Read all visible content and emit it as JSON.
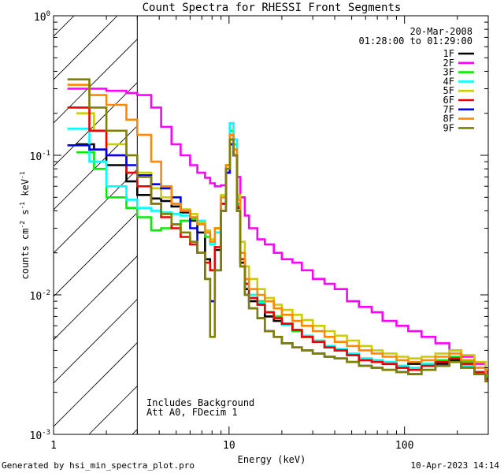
{
  "chart_data": {
    "type": "line",
    "title": "Count Spectra for RHESSI Front Segments",
    "xlabel": "Energy (keV)",
    "ylabel": "counts cm",
    "ylabel_sup1": "-2",
    "ylabel_mid": " s",
    "ylabel_sup2": "-1",
    "ylabel_mid2": " keV",
    "ylabel_sup3": "-1",
    "x_scale": "log",
    "y_scale": "log",
    "xlim": [
      1,
      300
    ],
    "ylim": [
      0.001,
      1
    ],
    "x_tick_labels": [
      {
        "value": 1,
        "label": "1"
      },
      {
        "value": 10,
        "label": "10"
      },
      {
        "value": 100,
        "label": "100"
      }
    ],
    "y_tick_labels": [
      {
        "value": 1,
        "base": "10",
        "exp": "0"
      },
      {
        "value": 0.1,
        "base": "10",
        "exp": "-1"
      },
      {
        "value": 0.01,
        "base": "10",
        "exp": "-2"
      },
      {
        "value": 0.001,
        "base": "10",
        "exp": "-3"
      }
    ],
    "date": "20-Mar-2008",
    "time_range": "01:28:00 to 01:29:00",
    "excluded_region_max_kev": 3,
    "annotations": [
      "Includes Background",
      "Att A0, FDecim 1"
    ],
    "series": [
      {
        "name": "1F",
        "color": "#000000",
        "x": [
          1.35,
          1.7,
          2.0,
          2.6,
          3.0,
          3.6,
          4.1,
          4.7,
          5.3,
          6.0,
          6.6,
          7.3,
          7.8,
          8.3,
          9.0,
          9.6,
          10.1,
          10.6,
          11.1,
          11.6,
          12.3,
          13.0,
          14.5,
          16,
          18,
          20,
          23,
          26,
          30,
          35,
          40,
          47,
          55,
          65,
          75,
          90,
          105,
          125,
          150,
          180,
          210,
          250,
          290
        ],
        "values": [
          0.12,
          0.11,
          0.085,
          0.065,
          0.052,
          0.049,
          0.047,
          0.043,
          0.039,
          0.034,
          0.028,
          0.018,
          0.015,
          0.021,
          0.045,
          0.075,
          0.12,
          0.1,
          0.042,
          0.017,
          0.011,
          0.009,
          0.0085,
          0.007,
          0.0065,
          0.0062,
          0.0056,
          0.005,
          0.0046,
          0.0042,
          0.004,
          0.0037,
          0.0034,
          0.0033,
          0.0032,
          0.003,
          0.0032,
          0.0031,
          0.0032,
          0.0034,
          0.0031,
          0.0027,
          0.0024
        ]
      },
      {
        "name": "2F",
        "color": "#ff00ff",
        "x": [
          1.2,
          1.6,
          2.0,
          2.6,
          3.0,
          3.6,
          4.1,
          4.7,
          5.3,
          6.0,
          6.6,
          7.3,
          7.8,
          8.3,
          9.0,
          9.6,
          10.1,
          10.6,
          11.1,
          11.6,
          12.3,
          13.0,
          14.5,
          16,
          18,
          20,
          23,
          26,
          30,
          35,
          40,
          47,
          55,
          65,
          75,
          90,
          105,
          125,
          150,
          180,
          210,
          250,
          290
        ],
        "values": [
          0.3,
          0.3,
          0.29,
          0.28,
          0.27,
          0.22,
          0.16,
          0.12,
          0.1,
          0.085,
          0.075,
          0.069,
          0.063,
          0.06,
          0.061,
          0.075,
          0.12,
          0.1,
          0.07,
          0.05,
          0.037,
          0.03,
          0.025,
          0.023,
          0.02,
          0.018,
          0.017,
          0.015,
          0.013,
          0.012,
          0.011,
          0.009,
          0.0082,
          0.0075,
          0.0065,
          0.006,
          0.0055,
          0.005,
          0.0045,
          0.004,
          0.0036,
          0.0032,
          0.0028
        ]
      },
      {
        "name": "3F",
        "color": "#00ee00",
        "x": [
          1.35,
          1.7,
          2.0,
          2.6,
          3.0,
          3.6,
          4.1,
          4.7,
          5.3,
          6.0,
          6.6,
          7.3,
          7.8,
          8.3,
          9.0,
          9.6,
          10.1,
          10.6,
          11.1,
          11.6,
          12.3,
          13.0,
          14.5,
          16,
          18,
          20,
          23,
          26,
          30,
          35,
          40,
          47,
          55,
          65,
          75,
          90,
          105,
          125,
          150,
          180,
          210,
          250,
          290
        ],
        "values": [
          0.105,
          0.08,
          0.05,
          0.042,
          0.036,
          0.029,
          0.03,
          0.032,
          0.034,
          0.035,
          0.033,
          0.026,
          0.023,
          0.03,
          0.05,
          0.085,
          0.15,
          0.12,
          0.045,
          0.018,
          0.012,
          0.01,
          0.009,
          0.0075,
          0.007,
          0.0062,
          0.0055,
          0.005,
          0.0047,
          0.0043,
          0.004,
          0.0037,
          0.0035,
          0.0034,
          0.0033,
          0.0031,
          0.003,
          0.0032,
          0.0034,
          0.0036,
          0.0033,
          0.003,
          0.0026
        ]
      },
      {
        "name": "4F",
        "color": "#00ffff",
        "x": [
          1.2,
          1.6,
          2.0,
          2.6,
          3.0,
          3.6,
          4.1,
          4.7,
          5.3,
          6.0,
          6.6,
          7.3,
          7.8,
          8.3,
          9.0,
          9.6,
          10.1,
          10.6,
          11.1,
          11.6,
          12.3,
          13.0,
          14.5,
          16,
          18,
          20,
          23,
          26,
          30,
          35,
          40,
          47,
          55,
          65,
          75,
          90,
          105,
          125,
          150,
          180,
          210,
          250,
          290
        ],
        "values": [
          0.155,
          0.09,
          0.06,
          0.048,
          0.042,
          0.04,
          0.039,
          0.038,
          0.037,
          0.036,
          0.034,
          0.028,
          0.023,
          0.028,
          0.05,
          0.085,
          0.17,
          0.13,
          0.05,
          0.02,
          0.013,
          0.01,
          0.0088,
          0.0075,
          0.0068,
          0.0061,
          0.0056,
          0.0051,
          0.0047,
          0.0043,
          0.0041,
          0.0038,
          0.0035,
          0.0034,
          0.0033,
          0.0031,
          0.003,
          0.0032,
          0.0031,
          0.0033,
          0.0031,
          0.0028,
          0.0025
        ]
      },
      {
        "name": "5F",
        "color": "#cccc00",
        "x": [
          1.35,
          1.7,
          2.0,
          2.6,
          3.0,
          3.6,
          4.1,
          4.7,
          5.3,
          6.0,
          6.6,
          7.3,
          7.8,
          8.3,
          9.0,
          9.6,
          10.1,
          10.6,
          11.1,
          11.6,
          12.3,
          13.0,
          14.5,
          16,
          18,
          20,
          23,
          26,
          30,
          35,
          40,
          47,
          55,
          65,
          75,
          90,
          105,
          125,
          150,
          180,
          210,
          250,
          290
        ],
        "values": [
          0.2,
          0.15,
          0.12,
          0.1,
          0.075,
          0.058,
          0.05,
          0.045,
          0.041,
          0.038,
          0.033,
          0.029,
          0.025,
          0.03,
          0.052,
          0.085,
          0.14,
          0.11,
          0.052,
          0.024,
          0.016,
          0.013,
          0.011,
          0.0095,
          0.0085,
          0.0078,
          0.0072,
          0.0066,
          0.006,
          0.0055,
          0.0051,
          0.0047,
          0.0043,
          0.004,
          0.0038,
          0.0036,
          0.0035,
          0.0036,
          0.0038,
          0.004,
          0.0037,
          0.0033,
          0.0029
        ]
      },
      {
        "name": "6F",
        "color": "#ee0000",
        "x": [
          1.2,
          1.6,
          2.0,
          2.6,
          3.0,
          3.6,
          4.1,
          4.7,
          5.3,
          6.0,
          6.6,
          7.3,
          7.8,
          8.3,
          9.0,
          9.6,
          10.1,
          10.6,
          11.1,
          11.6,
          12.3,
          13.0,
          14.5,
          16,
          18,
          20,
          23,
          26,
          30,
          35,
          40,
          47,
          55,
          65,
          75,
          90,
          105,
          125,
          150,
          180,
          210,
          250,
          290
        ],
        "values": [
          0.22,
          0.15,
          0.1,
          0.075,
          0.06,
          0.045,
          0.036,
          0.03,
          0.026,
          0.023,
          0.02,
          0.017,
          0.015,
          0.022,
          0.045,
          0.08,
          0.13,
          0.1,
          0.043,
          0.018,
          0.012,
          0.0095,
          0.0085,
          0.0075,
          0.0068,
          0.0062,
          0.0056,
          0.005,
          0.0046,
          0.0042,
          0.004,
          0.0037,
          0.0034,
          0.0033,
          0.0032,
          0.003,
          0.0029,
          0.0031,
          0.0033,
          0.0035,
          0.0032,
          0.0028,
          0.0025
        ]
      },
      {
        "name": "7F",
        "color": "#0000ee",
        "x": [
          1.2,
          1.6,
          2.0,
          2.6,
          3.0,
          3.6,
          4.1,
          4.7,
          5.3,
          6.0,
          6.6,
          7.3,
          7.8,
          8.3,
          9.0,
          9.6,
          10.1,
          10.6,
          11.1,
          11.6,
          12.3,
          13.0,
          14.5,
          16,
          18,
          20,
          23,
          26,
          30,
          35,
          40,
          47,
          55,
          65,
          75,
          90,
          105,
          125,
          150,
          180,
          210,
          250,
          290
        ],
        "values": [
          0.118,
          0.11,
          0.1,
          0.085,
          0.072,
          0.062,
          0.058,
          0.05,
          0.04,
          0.03,
          0.02,
          0.013,
          0.009,
          0.015,
          0.04,
          0.075,
          0.12,
          0.1,
          0.04,
          0.016,
          0.01,
          0.008,
          0.0068,
          0.0055,
          0.005,
          0.0045,
          0.0042,
          0.004,
          0.0038,
          0.0036,
          0.0035,
          0.0033,
          0.0031,
          0.003,
          0.0029,
          0.0028,
          0.0027,
          0.0029,
          0.0031,
          0.0033,
          0.003,
          0.0027,
          0.0024
        ]
      },
      {
        "name": "8F",
        "color": "#ff8800",
        "x": [
          1.2,
          1.6,
          2.0,
          2.6,
          3.0,
          3.6,
          4.1,
          4.7,
          5.3,
          6.0,
          6.6,
          7.3,
          7.8,
          8.3,
          9.0,
          9.6,
          10.1,
          10.6,
          11.1,
          11.6,
          12.3,
          13.0,
          14.5,
          16,
          18,
          20,
          23,
          26,
          30,
          35,
          40,
          47,
          55,
          65,
          75,
          90,
          105,
          125,
          150,
          180,
          210,
          250,
          290
        ],
        "values": [
          0.32,
          0.27,
          0.23,
          0.18,
          0.14,
          0.09,
          0.06,
          0.045,
          0.04,
          0.036,
          0.032,
          0.028,
          0.024,
          0.03,
          0.05,
          0.085,
          0.14,
          0.11,
          0.048,
          0.02,
          0.013,
          0.011,
          0.01,
          0.009,
          0.008,
          0.0072,
          0.0065,
          0.006,
          0.0055,
          0.005,
          0.0046,
          0.0043,
          0.004,
          0.0038,
          0.0036,
          0.0034,
          0.0033,
          0.0034,
          0.0036,
          0.0038,
          0.0034,
          0.003,
          0.0027
        ]
      },
      {
        "name": "9F",
        "color": "#808000",
        "x": [
          1.2,
          1.6,
          2.0,
          2.6,
          3.0,
          3.6,
          4.1,
          4.7,
          5.3,
          6.0,
          6.6,
          7.3,
          7.8,
          8.3,
          9.0,
          9.6,
          10.1,
          10.6,
          11.1,
          11.6,
          12.3,
          13.0,
          14.5,
          16,
          18,
          20,
          23,
          26,
          30,
          35,
          40,
          47,
          55,
          65,
          75,
          90,
          105,
          125,
          150,
          180,
          210,
          250,
          290
        ],
        "values": [
          0.35,
          0.22,
          0.15,
          0.1,
          0.07,
          0.045,
          0.038,
          0.032,
          0.028,
          0.024,
          0.02,
          0.013,
          0.005,
          0.015,
          0.04,
          0.08,
          0.13,
          0.1,
          0.04,
          0.016,
          0.01,
          0.008,
          0.0068,
          0.0055,
          0.005,
          0.0045,
          0.0042,
          0.004,
          0.0038,
          0.0036,
          0.0035,
          0.0033,
          0.0031,
          0.003,
          0.0029,
          0.0028,
          0.0027,
          0.0029,
          0.0031,
          0.0033,
          0.003,
          0.0027,
          0.0024
        ]
      }
    ]
  },
  "footer": {
    "generated_by": "Generated by hsi_min_spectra_plot.pro",
    "timestamp": "10-Apr-2023 14:14"
  },
  "colors": {
    "background": "#ffffff",
    "axes": "#000000"
  }
}
